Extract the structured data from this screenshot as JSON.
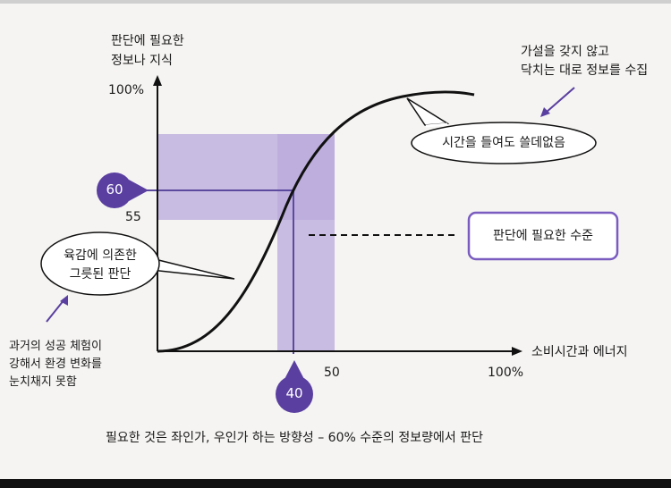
{
  "y_axis_label": [
    "판단에 필요한",
    "정보나 지식"
  ],
  "x_axis_label": "소비시간과 에너지",
  "y_ticks": {
    "top": "100%",
    "marker": "60",
    "low": "55"
  },
  "x_ticks": {
    "marker": "40",
    "mid": "50",
    "end": "100%"
  },
  "callouts": {
    "waste": "시간을 들여도 쓸데없음",
    "needed_level": "판단에 필요한 수준",
    "intuition": [
      "육감에 의존한",
      "그릇된 판단"
    ]
  },
  "notes": {
    "top_right": [
      "가설을 갖지 않고",
      "닥치는 대로 정보를 수집"
    ],
    "bottom_left": [
      "과거의 성공 체험이",
      "강해서 환경 변화를",
      "눈치채지 못함"
    ]
  },
  "caption": "필요한 것은 좌인가, 우인가 하는 방향성 – 60% 수준의 정보량에서 판단",
  "colors": {
    "band": "#b9a9dc",
    "marker": "#5a3fa0",
    "line": "#5b4a9e"
  }
}
